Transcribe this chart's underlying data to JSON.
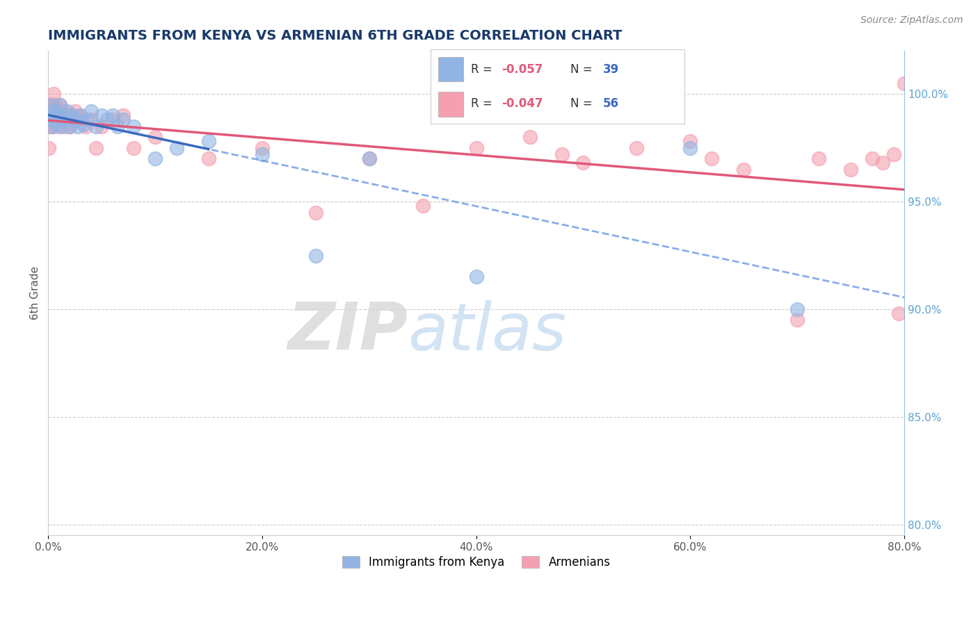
{
  "title": "IMMIGRANTS FROM KENYA VS ARMENIAN 6TH GRADE CORRELATION CHART",
  "source": "Source: ZipAtlas.com",
  "ylabel": "6th Grade",
  "xlim": [
    0.0,
    80.0
  ],
  "ylim": [
    79.5,
    102.0
  ],
  "kenya_R": -0.057,
  "kenya_N": 39,
  "armenian_R": -0.047,
  "armenian_N": 56,
  "kenya_color": "#92b4e3",
  "armenian_color": "#f4a0b0",
  "kenya_x": [
    0.1,
    0.2,
    0.3,
    0.4,
    0.5,
    0.6,
    0.7,
    0.8,
    0.9,
    1.0,
    1.1,
    1.2,
    1.4,
    1.6,
    1.8,
    2.0,
    2.2,
    2.5,
    2.8,
    3.0,
    3.3,
    3.6,
    4.0,
    4.5,
    5.0,
    5.5,
    6.0,
    6.5,
    7.0,
    8.0,
    10.0,
    12.0,
    15.0,
    20.0,
    25.0,
    30.0,
    40.0,
    60.0,
    70.0
  ],
  "kenya_y": [
    99.2,
    98.8,
    99.5,
    98.5,
    99.0,
    98.8,
    99.2,
    98.6,
    99.0,
    98.8,
    99.5,
    98.5,
    99.0,
    98.8,
    99.2,
    98.5,
    99.0,
    98.8,
    98.5,
    99.0,
    98.6,
    98.8,
    99.2,
    98.5,
    99.0,
    98.8,
    99.0,
    98.5,
    98.8,
    98.5,
    97.0,
    97.5,
    97.8,
    97.2,
    92.5,
    97.0,
    91.5,
    97.5,
    90.0
  ],
  "armenian_x": [
    0.05,
    0.1,
    0.15,
    0.2,
    0.25,
    0.3,
    0.35,
    0.4,
    0.45,
    0.5,
    0.55,
    0.6,
    0.65,
    0.7,
    0.8,
    0.9,
    1.0,
    1.1,
    1.2,
    1.4,
    1.6,
    1.8,
    2.0,
    2.2,
    2.5,
    2.8,
    3.0,
    3.5,
    4.0,
    4.5,
    5.0,
    6.0,
    7.0,
    8.0,
    10.0,
    15.0,
    20.0,
    25.0,
    30.0,
    35.0,
    40.0,
    45.0,
    48.0,
    50.0,
    55.0,
    60.0,
    62.0,
    65.0,
    70.0,
    72.0,
    75.0,
    77.0,
    78.0,
    79.0,
    79.5,
    80.0
  ],
  "armenian_y": [
    97.5,
    98.5,
    99.0,
    99.5,
    98.8,
    99.2,
    98.5,
    99.0,
    99.5,
    100.0,
    99.2,
    98.8,
    99.5,
    99.0,
    98.8,
    98.5,
    99.0,
    99.5,
    98.8,
    99.2,
    98.5,
    99.0,
    98.5,
    99.0,
    99.2,
    98.8,
    99.0,
    98.5,
    98.8,
    97.5,
    98.5,
    98.8,
    99.0,
    97.5,
    98.0,
    97.0,
    97.5,
    94.5,
    97.0,
    94.8,
    97.5,
    98.0,
    97.2,
    96.8,
    97.5,
    97.8,
    97.0,
    96.5,
    89.5,
    97.0,
    96.5,
    97.0,
    96.8,
    97.2,
    89.8,
    100.5
  ],
  "watermark_zip": "ZIP",
  "watermark_atlas": "atlas",
  "legend_kenya_label": "Immigrants from Kenya",
  "legend_armenian_label": "Armenians",
  "title_color": "#1a3a6b",
  "grid_color": "#cccccc",
  "right_axis_color": "#5ba3d0",
  "x_ticks": [
    0,
    20,
    40,
    60,
    80
  ],
  "y_ticks": [
    80,
    85,
    90,
    95,
    100
  ],
  "kenya_line_color": "#3a6abf",
  "armenian_line_color": "#e05878",
  "kenya_dash_color": "#5a8adf"
}
